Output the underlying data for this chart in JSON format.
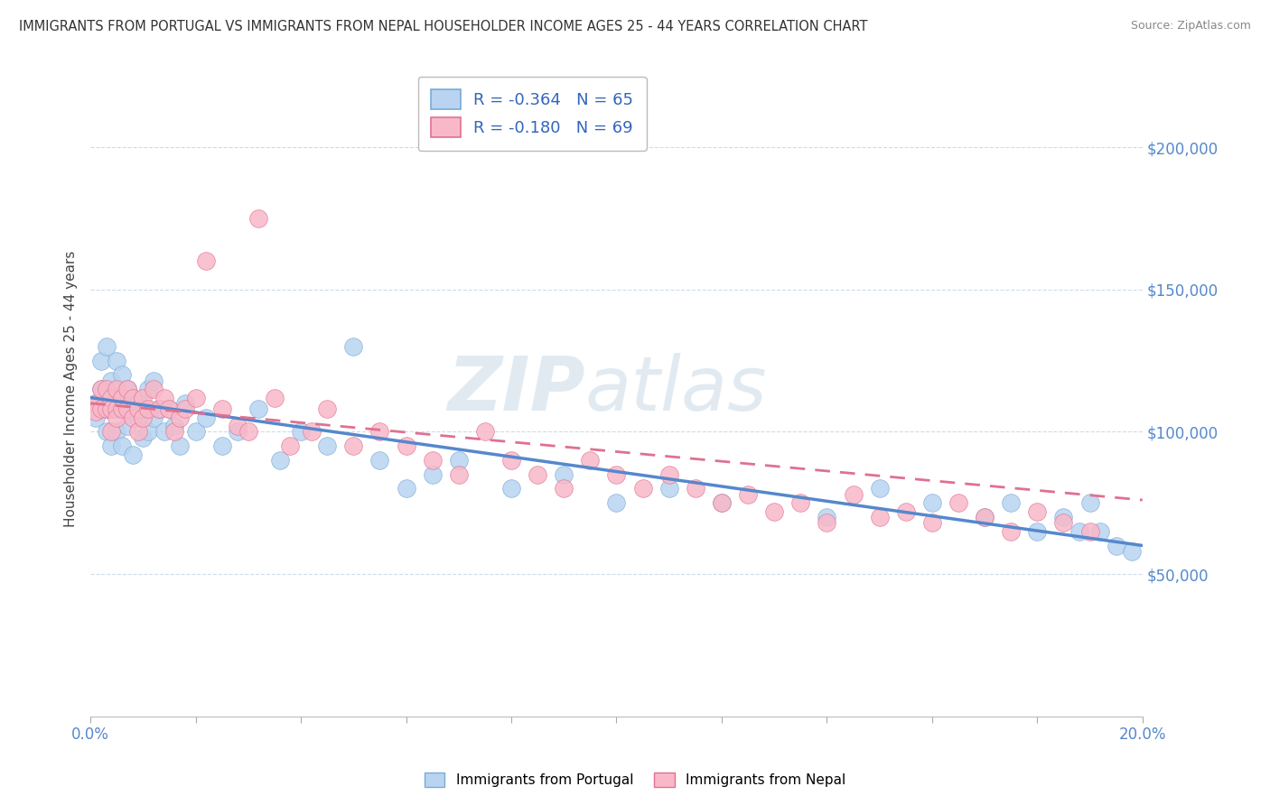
{
  "title": "IMMIGRANTS FROM PORTUGAL VS IMMIGRANTS FROM NEPAL HOUSEHOLDER INCOME AGES 25 - 44 YEARS CORRELATION CHART",
  "source": "Source: ZipAtlas.com",
  "ylabel": "Householder Income Ages 25 - 44 years",
  "watermark_zip": "ZIP",
  "watermark_atlas": "atlas",
  "portugal_R": -0.364,
  "portugal_N": 65,
  "nepal_R": -0.18,
  "nepal_N": 69,
  "portugal_color": "#b8d4f0",
  "portugal_edge": "#7aaad8",
  "nepal_color": "#f8b8c8",
  "nepal_edge": "#e07090",
  "portugal_line_color": "#5588cc",
  "nepal_line_color": "#e07090",
  "ytick_values": [
    50000,
    100000,
    150000,
    200000
  ],
  "xlim": [
    0.0,
    0.2
  ],
  "ylim": [
    0,
    230000
  ],
  "portugal_x": [
    0.001,
    0.001,
    0.002,
    0.002,
    0.003,
    0.003,
    0.003,
    0.004,
    0.004,
    0.004,
    0.005,
    0.005,
    0.005,
    0.006,
    0.006,
    0.006,
    0.007,
    0.007,
    0.007,
    0.008,
    0.008,
    0.009,
    0.009,
    0.01,
    0.01,
    0.011,
    0.011,
    0.012,
    0.012,
    0.013,
    0.014,
    0.015,
    0.016,
    0.017,
    0.018,
    0.02,
    0.022,
    0.025,
    0.028,
    0.032,
    0.036,
    0.04,
    0.045,
    0.05,
    0.055,
    0.06,
    0.065,
    0.07,
    0.08,
    0.09,
    0.1,
    0.11,
    0.12,
    0.14,
    0.15,
    0.16,
    0.17,
    0.175,
    0.18,
    0.185,
    0.188,
    0.19,
    0.192,
    0.195,
    0.198
  ],
  "portugal_y": [
    110000,
    105000,
    125000,
    115000,
    100000,
    130000,
    108000,
    108000,
    118000,
    95000,
    112000,
    125000,
    100000,
    108000,
    120000,
    95000,
    115000,
    102000,
    108000,
    112000,
    92000,
    110000,
    105000,
    108000,
    98000,
    115000,
    100000,
    118000,
    105000,
    108000,
    100000,
    108000,
    102000,
    95000,
    110000,
    100000,
    105000,
    95000,
    100000,
    108000,
    90000,
    100000,
    95000,
    130000,
    90000,
    80000,
    85000,
    90000,
    80000,
    85000,
    75000,
    80000,
    75000,
    70000,
    80000,
    75000,
    70000,
    75000,
    65000,
    70000,
    65000,
    75000,
    65000,
    60000,
    58000
  ],
  "nepal_x": [
    0.001,
    0.001,
    0.002,
    0.002,
    0.003,
    0.003,
    0.004,
    0.004,
    0.004,
    0.005,
    0.005,
    0.005,
    0.006,
    0.006,
    0.007,
    0.007,
    0.008,
    0.008,
    0.009,
    0.009,
    0.01,
    0.01,
    0.011,
    0.012,
    0.013,
    0.014,
    0.015,
    0.016,
    0.017,
    0.018,
    0.02,
    0.022,
    0.025,
    0.028,
    0.03,
    0.032,
    0.035,
    0.038,
    0.042,
    0.045,
    0.05,
    0.055,
    0.06,
    0.065,
    0.07,
    0.075,
    0.08,
    0.085,
    0.09,
    0.095,
    0.1,
    0.105,
    0.11,
    0.115,
    0.12,
    0.125,
    0.13,
    0.135,
    0.14,
    0.145,
    0.15,
    0.155,
    0.16,
    0.165,
    0.17,
    0.175,
    0.18,
    0.185,
    0.19
  ],
  "nepal_y": [
    110000,
    107000,
    108000,
    115000,
    108000,
    115000,
    112000,
    108000,
    100000,
    108000,
    115000,
    105000,
    112000,
    108000,
    115000,
    108000,
    112000,
    105000,
    108000,
    100000,
    112000,
    105000,
    108000,
    115000,
    108000,
    112000,
    108000,
    100000,
    105000,
    108000,
    112000,
    160000,
    108000,
    102000,
    100000,
    175000,
    112000,
    95000,
    100000,
    108000,
    95000,
    100000,
    95000,
    90000,
    85000,
    100000,
    90000,
    85000,
    80000,
    90000,
    85000,
    80000,
    85000,
    80000,
    75000,
    78000,
    72000,
    75000,
    68000,
    78000,
    70000,
    72000,
    68000,
    75000,
    70000,
    65000,
    72000,
    68000,
    65000
  ]
}
